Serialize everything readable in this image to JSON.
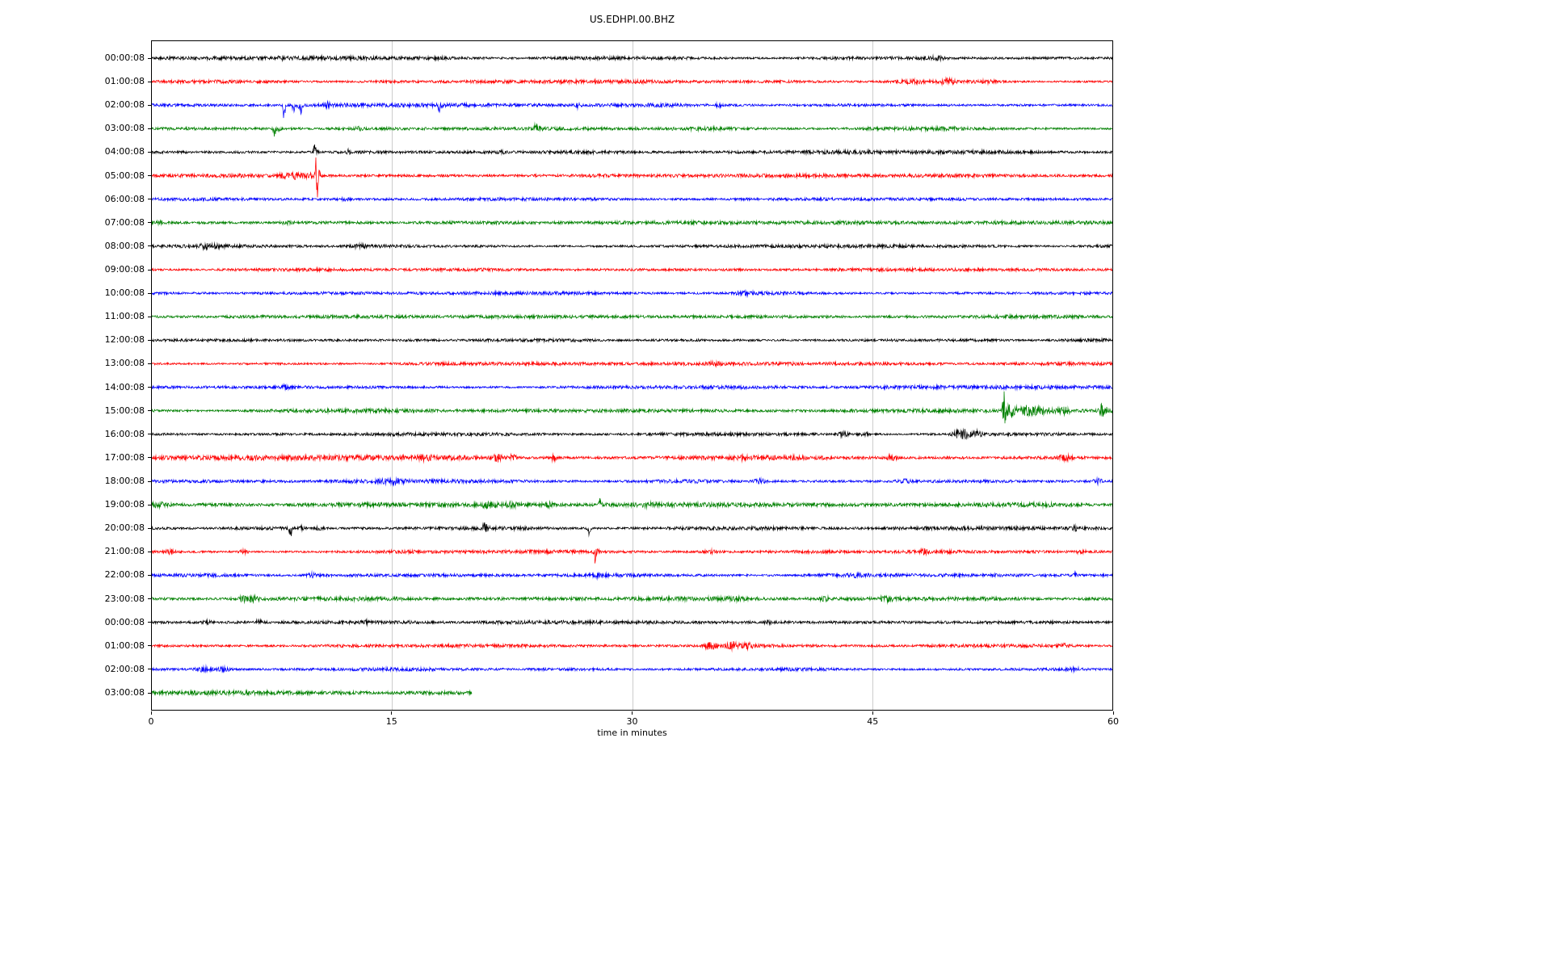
{
  "title": "US.EDHPI.00.BHZ",
  "xlabel": "time in minutes",
  "x_ticks": [
    0,
    15,
    30,
    45,
    60
  ],
  "grid_x": [
    15,
    30,
    45
  ],
  "colors": {
    "black": "#000000",
    "red": "#ff0000",
    "blue": "#0000ff",
    "green": "#008000",
    "grid": "#cccccc",
    "axis": "#000000",
    "background": "#ffffff"
  },
  "chart_data": {
    "type": "line",
    "subtype": "helicorder-dayplot",
    "x_range_minutes": [
      0,
      60
    ],
    "minutes_per_row": 60,
    "traces": [
      {
        "label": "00:00:08",
        "color": "black",
        "base_amp": 1.7,
        "duration_min": 60,
        "events": [
          [
            8.2,
            3,
            0.25,
            0
          ],
          [
            49.0,
            2.5,
            0.5,
            0
          ]
        ]
      },
      {
        "label": "01:00:08",
        "color": "red",
        "base_amp": 1.6,
        "duration_min": 60,
        "events": [
          [
            47.5,
            3,
            1.0,
            0
          ],
          [
            49.6,
            6,
            0.5,
            0
          ],
          [
            52.0,
            2.5,
            1.0,
            0
          ]
        ]
      },
      {
        "label": "02:00:08",
        "color": "blue",
        "base_amp": 2.0,
        "duration_min": 60,
        "events": [
          [
            8.3,
            12,
            0.08,
            -1
          ],
          [
            8.9,
            8,
            0.1,
            -1
          ],
          [
            9.3,
            10,
            0.12,
            -1
          ],
          [
            11.0,
            5,
            0.15,
            0
          ],
          [
            18.0,
            7,
            0.1,
            -1
          ],
          [
            26.6,
            4,
            0.1,
            0
          ],
          [
            35.4,
            4,
            0.15,
            0
          ]
        ]
      },
      {
        "label": "03:00:08",
        "color": "green",
        "base_amp": 1.8,
        "duration_min": 60,
        "events": [
          [
            7.7,
            7,
            0.08,
            -1
          ],
          [
            7.9,
            4,
            0.2,
            0
          ],
          [
            13.0,
            2.5,
            0.3,
            0
          ],
          [
            24.0,
            5,
            0.1,
            1
          ],
          [
            24.2,
            3,
            0.2,
            0
          ]
        ]
      },
      {
        "label": "04:00:08",
        "color": "black",
        "base_amp": 1.7,
        "duration_min": 60,
        "events": [
          [
            10.2,
            6,
            0.08,
            1
          ],
          [
            10.3,
            4,
            0.15,
            0
          ],
          [
            12.3,
            5,
            0.1,
            0
          ],
          [
            21.8,
            3,
            0.2,
            0
          ]
        ]
      },
      {
        "label": "05:00:08",
        "color": "red",
        "base_amp": 1.7,
        "duration_min": 60,
        "events": [
          [
            8.3,
            5,
            0.3,
            0
          ],
          [
            9.0,
            6,
            0.4,
            0
          ],
          [
            9.8,
            5,
            0.3,
            0
          ],
          [
            10.3,
            18,
            0.05,
            1
          ],
          [
            10.35,
            26,
            0.06,
            -1
          ],
          [
            10.4,
            12,
            0.15,
            0
          ]
        ]
      },
      {
        "label": "06:00:08",
        "color": "blue",
        "base_amp": 1.7,
        "duration_min": 60,
        "events": [
          [
            12.0,
            2.5,
            0.3,
            0
          ]
        ]
      },
      {
        "label": "07:00:08",
        "color": "green",
        "base_amp": 1.7,
        "duration_min": 60,
        "events": [
          [
            0.5,
            2.5,
            0.3,
            0
          ],
          [
            8.5,
            3,
            0.4,
            0
          ]
        ]
      },
      {
        "label": "08:00:08",
        "color": "black",
        "base_amp": 1.7,
        "duration_min": 60,
        "events": [
          [
            3.5,
            3,
            0.8,
            0
          ],
          [
            13.0,
            2.5,
            0.4,
            0
          ]
        ]
      },
      {
        "label": "09:00:08",
        "color": "red",
        "base_amp": 1.5,
        "duration_min": 60,
        "events": []
      },
      {
        "label": "10:00:08",
        "color": "blue",
        "base_amp": 1.7,
        "duration_min": 60,
        "events": [
          [
            37.0,
            2.5,
            0.5,
            0
          ]
        ]
      },
      {
        "label": "11:00:08",
        "color": "green",
        "base_amp": 1.6,
        "duration_min": 60,
        "events": []
      },
      {
        "label": "12:00:08",
        "color": "black",
        "base_amp": 1.6,
        "duration_min": 60,
        "events": []
      },
      {
        "label": "13:00:08",
        "color": "red",
        "base_amp": 1.5,
        "duration_min": 60,
        "events": [
          [
            35.0,
            2.5,
            0.4,
            0
          ]
        ]
      },
      {
        "label": "14:00:08",
        "color": "blue",
        "base_amp": 1.7,
        "duration_min": 60,
        "events": [
          [
            8.4,
            4,
            0.25,
            0
          ]
        ]
      },
      {
        "label": "15:00:08",
        "color": "green",
        "base_amp": 1.8,
        "duration_min": 60,
        "events": [
          [
            53.15,
            14,
            0.05,
            1
          ],
          [
            53.2,
            24,
            0.12,
            0
          ],
          [
            53.6,
            12,
            0.3,
            0
          ],
          [
            54.5,
            8,
            0.5,
            0
          ],
          [
            55.5,
            5,
            0.8,
            0
          ],
          [
            57.0,
            6,
            0.3,
            0
          ],
          [
            59.3,
            9,
            0.15,
            0
          ],
          [
            59.5,
            6,
            0.3,
            0
          ]
        ]
      },
      {
        "label": "16:00:08",
        "color": "black",
        "base_amp": 1.7,
        "duration_min": 60,
        "events": [
          [
            43.2,
            5,
            0.3,
            0
          ],
          [
            44.5,
            3,
            0.4,
            0
          ],
          [
            50.3,
            8,
            0.3,
            0
          ],
          [
            50.8,
            9,
            0.25,
            0
          ],
          [
            51.5,
            6,
            0.3,
            0
          ]
        ]
      },
      {
        "label": "17:00:08",
        "color": "red",
        "base_amp": 2.2,
        "duration_min": 60,
        "events": [
          [
            17.0,
            4,
            0.5,
            0
          ],
          [
            21.6,
            7,
            0.25,
            0
          ],
          [
            22.5,
            6,
            0.25,
            0
          ],
          [
            25.1,
            7,
            0.15,
            0
          ],
          [
            36.8,
            3,
            0.3,
            0
          ],
          [
            46.2,
            5,
            0.3,
            0
          ],
          [
            57.0,
            5,
            0.4,
            0
          ]
        ]
      },
      {
        "label": "18:00:08",
        "color": "blue",
        "base_amp": 2.0,
        "duration_min": 60,
        "events": [
          [
            15.0,
            3,
            0.8,
            0
          ],
          [
            38.0,
            4,
            0.4,
            0
          ],
          [
            47.0,
            3,
            0.4,
            0
          ],
          [
            59.0,
            5,
            0.3,
            0
          ]
        ]
      },
      {
        "label": "19:00:08",
        "color": "green",
        "base_amp": 2.0,
        "duration_min": 60,
        "events": [
          [
            0.5,
            4,
            0.5,
            0
          ],
          [
            21.0,
            4,
            0.5,
            0
          ],
          [
            22.5,
            4,
            0.3,
            0
          ],
          [
            24.8,
            4,
            0.3,
            0
          ],
          [
            28.0,
            9,
            0.08,
            1
          ],
          [
            31.0,
            3,
            0.4,
            0
          ]
        ]
      },
      {
        "label": "20:00:08",
        "color": "black",
        "base_amp": 1.8,
        "duration_min": 60,
        "events": [
          [
            8.7,
            7,
            0.1,
            -1
          ],
          [
            9.4,
            5,
            0.12,
            0
          ],
          [
            10.5,
            3,
            0.3,
            0
          ],
          [
            20.8,
            7,
            0.1,
            1
          ],
          [
            20.9,
            4,
            0.2,
            0
          ],
          [
            27.3,
            5,
            0.12,
            -1
          ],
          [
            57.6,
            5,
            0.12,
            0
          ]
        ]
      },
      {
        "label": "21:00:08",
        "color": "red",
        "base_amp": 1.8,
        "duration_min": 60,
        "events": [
          [
            1.2,
            4,
            0.3,
            0
          ],
          [
            5.8,
            4,
            0.25,
            0
          ],
          [
            27.7,
            12,
            0.07,
            -1
          ],
          [
            27.8,
            5,
            0.15,
            0
          ],
          [
            34.9,
            3,
            0.3,
            0
          ],
          [
            48.2,
            4,
            0.2,
            0
          ],
          [
            58.0,
            3,
            0.3,
            0
          ]
        ]
      },
      {
        "label": "22:00:08",
        "color": "blue",
        "base_amp": 1.8,
        "duration_min": 60,
        "events": [
          [
            10.0,
            3.5,
            0.3,
            0
          ],
          [
            27.9,
            4,
            0.15,
            0
          ],
          [
            44.0,
            2.5,
            0.4,
            0
          ],
          [
            57.6,
            4,
            0.2,
            0
          ]
        ]
      },
      {
        "label": "23:00:08",
        "color": "green",
        "base_amp": 1.9,
        "duration_min": 60,
        "events": [
          [
            5.9,
            5,
            0.4,
            0
          ],
          [
            6.5,
            4,
            0.3,
            0
          ],
          [
            36.5,
            2.5,
            0.4,
            0
          ],
          [
            42.0,
            3,
            0.3,
            0
          ],
          [
            46.0,
            4,
            0.5,
            0
          ]
        ]
      },
      {
        "label": "00:00:08",
        "color": "black",
        "base_amp": 1.7,
        "duration_min": 60,
        "events": [
          [
            3.5,
            3,
            0.3,
            0
          ],
          [
            6.7,
            4,
            0.2,
            0
          ],
          [
            13.5,
            4,
            0.15,
            0
          ],
          [
            38.5,
            3,
            0.3,
            0
          ]
        ]
      },
      {
        "label": "01:00:08",
        "color": "red",
        "base_amp": 1.6,
        "duration_min": 60,
        "events": [
          [
            34.9,
            6,
            0.4,
            0
          ],
          [
            36.3,
            7,
            0.4,
            0
          ],
          [
            37.2,
            5,
            0.3,
            0
          ],
          [
            57.0,
            3,
            0.3,
            0
          ]
        ]
      },
      {
        "label": "02:00:08",
        "color": "blue",
        "base_amp": 1.8,
        "duration_min": 60,
        "events": [
          [
            3.3,
            4,
            0.5,
            0
          ],
          [
            4.5,
            4,
            0.4,
            0
          ],
          [
            57.5,
            3,
            0.4,
            0
          ]
        ]
      },
      {
        "label": "03:00:08",
        "color": "green",
        "base_amp": 2.2,
        "duration_min": 20,
        "events": []
      }
    ]
  }
}
